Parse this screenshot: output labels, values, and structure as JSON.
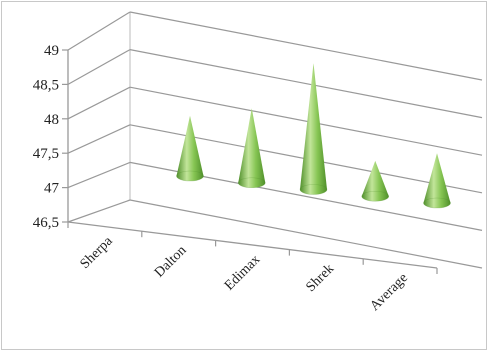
{
  "chart_data": {
    "type": "bar",
    "bar_shape": "cone",
    "categories": [
      "Sherpa",
      "Dalton",
      "Edimax",
      "Shrek",
      "Average"
    ],
    "values": [
      47.7,
      47.9,
      48.6,
      47.4,
      47.6
    ],
    "y_ticks": [
      "46,5",
      "47",
      "47,5",
      "48",
      "48,5",
      "49"
    ],
    "ylim": [
      46.5,
      49
    ],
    "grid": true,
    "legend": false,
    "colors": {
      "cone_light": "#c2e59a",
      "cone_mid": "#86c553",
      "cone_dark": "#4f8f2a",
      "gridline": "#999999"
    }
  }
}
